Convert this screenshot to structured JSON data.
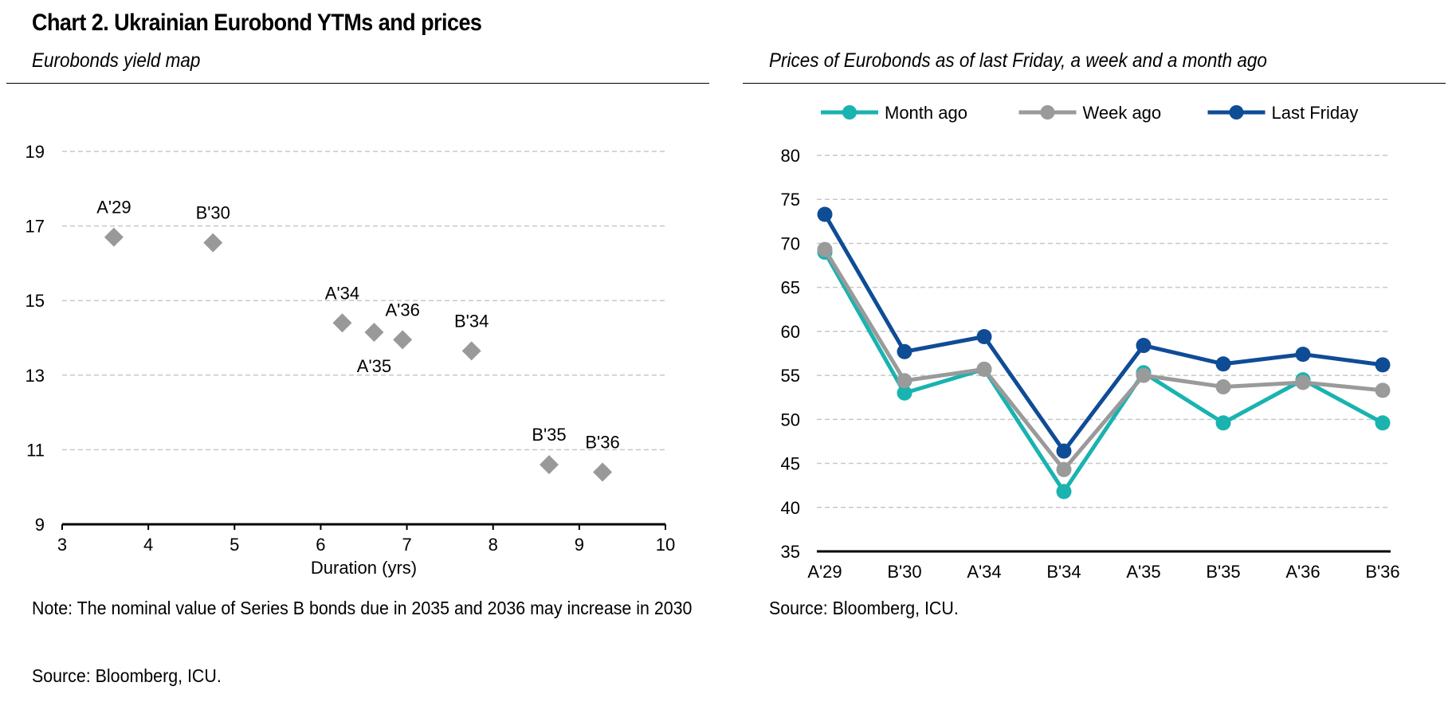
{
  "header": {
    "title": "Chart 2. Ukrainian Eurobond YTMs and prices"
  },
  "left_panel": {
    "subtitle": "Eurobonds yield map",
    "note": "Note: The nominal value of Series B bonds due in 2035 and 2036 may increase in 2030",
    "source": "Source: Bloomberg, ICU."
  },
  "right_panel": {
    "subtitle": "Prices of Eurobonds as of last Friday, a week and a month ago",
    "source": "Source: Bloomberg, ICU."
  },
  "chart_data": [
    {
      "type": "scatter",
      "title": "Eurobonds yield map",
      "xlabel": "Duration (yrs)",
      "ylabel": "",
      "xlim": [
        3,
        10
      ],
      "ylim": [
        9,
        19
      ],
      "xticks": [
        3,
        4,
        5,
        6,
        7,
        8,
        9,
        10
      ],
      "yticks": [
        9,
        11,
        13,
        15,
        17,
        19
      ],
      "grid": true,
      "marker_color": "#999999",
      "points": [
        {
          "label": "A'29",
          "x": 3.6,
          "y": 16.7
        },
        {
          "label": "B'30",
          "x": 4.75,
          "y": 16.55
        },
        {
          "label": "A'34",
          "x": 6.25,
          "y": 14.4
        },
        {
          "label": "A'35",
          "x": 6.62,
          "y": 14.15
        },
        {
          "label": "A'36",
          "x": 6.95,
          "y": 13.95
        },
        {
          "label": "B'34",
          "x": 7.75,
          "y": 13.65
        },
        {
          "label": "B'35",
          "x": 8.65,
          "y": 10.6
        },
        {
          "label": "B'36",
          "x": 9.27,
          "y": 10.4
        }
      ]
    },
    {
      "type": "line",
      "title": "Prices of Eurobonds as of last Friday, a week and a month ago",
      "categories": [
        "A'29",
        "B'30",
        "A'34",
        "B'34",
        "A'35",
        "B'35",
        "A'36",
        "B'36"
      ],
      "ylim": [
        35,
        80
      ],
      "yticks": [
        35,
        40,
        45,
        50,
        55,
        60,
        65,
        70,
        75,
        80
      ],
      "grid": true,
      "legend_position": "top",
      "series": [
        {
          "name": "Month ago",
          "color": "#19B3B0",
          "values": [
            69.0,
            53.0,
            55.7,
            41.8,
            55.3,
            49.6,
            54.5,
            49.6
          ]
        },
        {
          "name": "Week ago",
          "color": "#9A9A9A",
          "values": [
            69.3,
            54.4,
            55.7,
            44.3,
            55.0,
            53.7,
            54.2,
            53.3
          ]
        },
        {
          "name": "Last Friday",
          "color": "#0F4C96",
          "values": [
            73.3,
            57.7,
            59.4,
            46.4,
            58.4,
            56.3,
            57.4,
            56.2
          ]
        }
      ]
    }
  ]
}
